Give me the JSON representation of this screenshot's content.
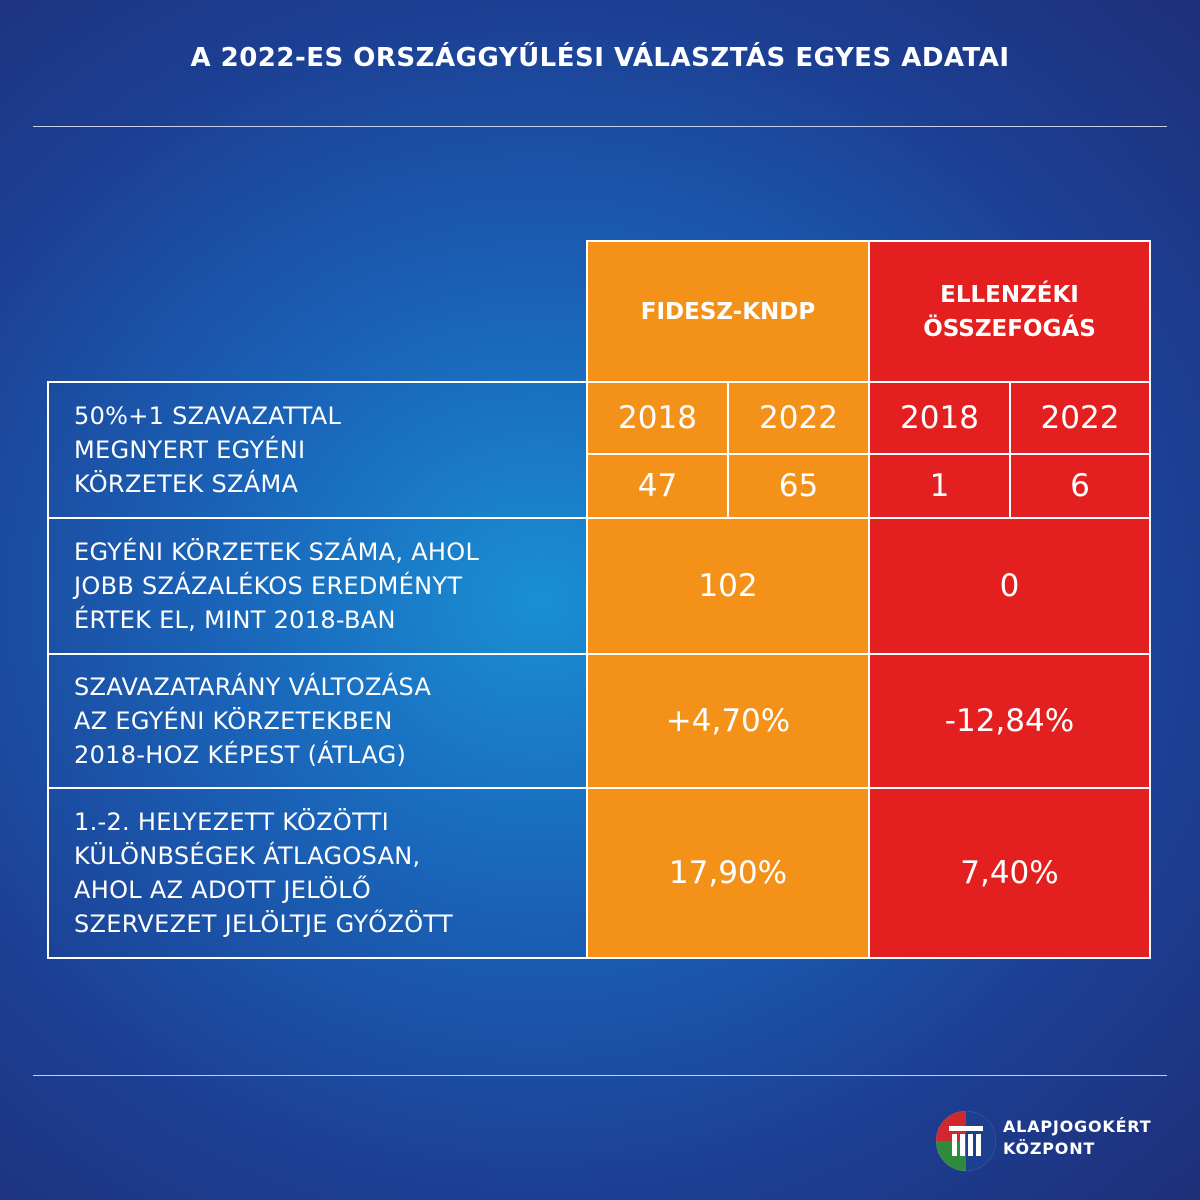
{
  "title": "A 2022-ES ORSZÁGGYŰLÉSI VÁLASZTÁS EGYES ADATAI",
  "columns": {
    "fidesz": "FIDESZ-KNDP",
    "opposition_line1": "ELLENZÉKI",
    "opposition_line2": "ÖSSZEFOGÁS"
  },
  "rows": [
    {
      "label": [
        "50%+1 SZAVAZATTAL",
        "MEGNYERT EGYÉNI",
        "KÖRZETEK SZÁMA"
      ],
      "years": [
        "2018",
        "2022",
        "2018",
        "2022"
      ],
      "values": [
        "47",
        "65",
        "1",
        "6"
      ]
    },
    {
      "label": [
        "EGYÉNI KÖRZETEK SZÁMA, AHOL",
        "JOBB SZÁZALÉKOS EREDMÉNYT",
        "ÉRTEK EL, MINT 2018-BAN"
      ],
      "fidesz": "102",
      "opposition": "0"
    },
    {
      "label": [
        "SZAVAZATARÁNY VÁLTOZÁSA",
        "AZ EGYÉNI KÖRZETEKBEN",
        "2018-HOZ KÉPEST (ÁTLAG)"
      ],
      "fidesz": "+4,70%",
      "opposition": "-12,84%"
    },
    {
      "label": [
        "1.-2. HELYEZETT KÖZÖTTI",
        "KÜLÖNBSÉGEK ÁTLAGOSAN,",
        "AHOL AZ ADOTT JELÖLŐ",
        "SZERVEZET JELÖLTJE GYŐZÖTT"
      ],
      "fidesz": "17,90%",
      "opposition": "7,40%"
    }
  ],
  "logo": {
    "line1": "ALAPJOGOKÉRT",
    "line2": "KÖZPONT"
  },
  "colors": {
    "orange": "#f39119",
    "red": "#e3201f",
    "accent_blue": "#1a63b8"
  }
}
